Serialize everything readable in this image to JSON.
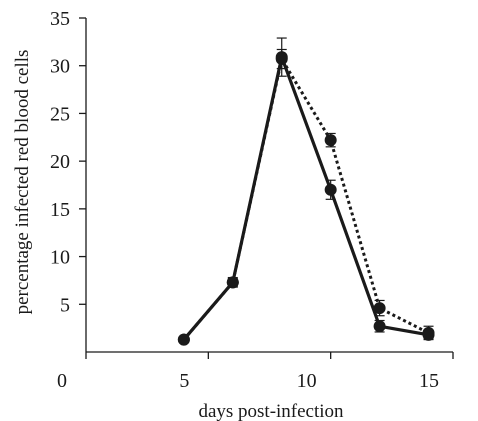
{
  "chart_data": {
    "type": "line",
    "title": "",
    "xlabel": "days post-infection",
    "ylabel": "percentage infected red blood cells",
    "xlim": [
      0,
      15
    ],
    "ylim": [
      0,
      35
    ],
    "x_ticks": [
      0,
      5,
      10,
      15
    ],
    "y_ticks": [
      5,
      10,
      15,
      20,
      25,
      30,
      35
    ],
    "grid": false,
    "legend": "none",
    "series": [
      {
        "style": "solid",
        "color": "#1a1a1a",
        "x": [
          4,
          6,
          8,
          10,
          12,
          14
        ],
        "y": [
          1.3,
          7.3,
          30.9,
          17.0,
          2.7,
          1.8
        ],
        "error": [
          0.2,
          0.5,
          2.0,
          1.0,
          0.6,
          0.4
        ]
      },
      {
        "style": "dotted",
        "color": "#1a1a1a",
        "x": [
          4,
          6,
          8,
          10,
          12,
          14
        ],
        "y": [
          1.3,
          7.3,
          30.7,
          22.2,
          4.6,
          2.0
        ],
        "error": [
          0.2,
          0.4,
          1.0,
          0.7,
          0.8,
          0.7
        ]
      }
    ]
  }
}
